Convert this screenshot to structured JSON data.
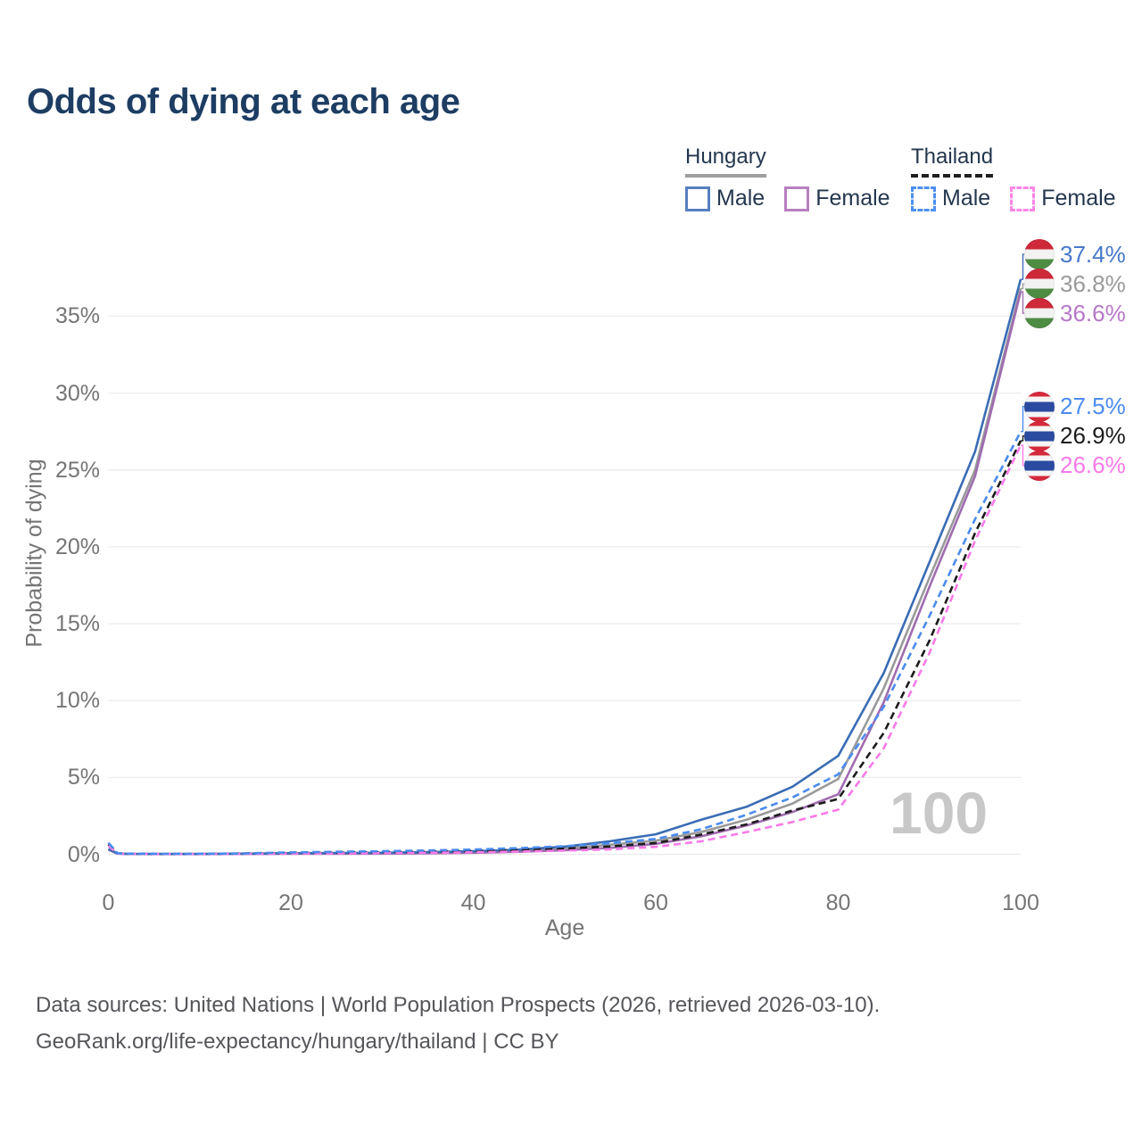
{
  "title": "Odds of dying at each age",
  "legend": {
    "groups": [
      {
        "country": "Hungary",
        "line_style": "solid",
        "underline_color": "#9e9e9e",
        "items": [
          {
            "label": "Male",
            "color": "#577fc0"
          },
          {
            "label": "Female",
            "color": "#b780bf"
          }
        ]
      },
      {
        "country": "Thailand",
        "line_style": "dashed",
        "underline_color": "#1f1f1f",
        "items": [
          {
            "label": "Male",
            "color": "#4d8ff2"
          },
          {
            "label": "Female",
            "color": "#ff85e6"
          }
        ]
      }
    ]
  },
  "y_axis": {
    "title": "Probability of dying",
    "tick_values": [
      0,
      5,
      10,
      15,
      20,
      25,
      30,
      35
    ],
    "tick_suffix": "%"
  },
  "x_axis": {
    "title": "Age",
    "tick_values": [
      0,
      20,
      40,
      60,
      80,
      100
    ]
  },
  "hover_age_watermark": "100",
  "footer": {
    "line1": "Data sources: United Nations | World Population Prospects (2026, retrieved 2026-03-10).",
    "line2": "GeoRank.org/life-expectancy/hungary/thailand | CC BY"
  },
  "chart_data": {
    "type": "line",
    "title": "Odds of dying at each age",
    "xlabel": "Age",
    "ylabel": "Probability of dying",
    "x_range": [
      0,
      100
    ],
    "y_range_pct": [
      0,
      37.5
    ],
    "grid": true,
    "legend_position": "top-right",
    "ages": [
      0,
      1,
      2,
      5,
      10,
      15,
      20,
      25,
      30,
      35,
      40,
      45,
      50,
      55,
      60,
      65,
      70,
      75,
      80,
      85,
      90,
      95,
      100
    ],
    "series": [
      {
        "name": "Hungary Male",
        "country": "Hungary",
        "sex": "Male",
        "color": "#3a6cb4",
        "label_color": "#4677c8",
        "dashed": false,
        "end_label": "37.4%",
        "values": [
          0.35,
          0.05,
          0.03,
          0.02,
          0.02,
          0.04,
          0.07,
          0.08,
          0.1,
          0.14,
          0.2,
          0.3,
          0.5,
          0.85,
          1.3,
          2.25,
          3.1,
          4.4,
          6.4,
          11.8,
          19.0,
          26.2,
          37.4
        ]
      },
      {
        "name": "Hungary Both sexes",
        "country": "Hungary",
        "sex": "Both",
        "color": "#9a9a9a",
        "label_color": "#9a9a9a",
        "dashed": false,
        "end_label": "36.8%",
        "values": [
          0.33,
          0.05,
          0.03,
          0.02,
          0.02,
          0.03,
          0.05,
          0.06,
          0.07,
          0.1,
          0.15,
          0.23,
          0.38,
          0.62,
          0.88,
          1.45,
          2.26,
          3.3,
          4.9,
          10.8,
          18.0,
          25.0,
          36.8
        ]
      },
      {
        "name": "Hungary Female",
        "country": "Hungary",
        "sex": "Female",
        "color": "#a06cb0",
        "label_color": "#b678c8",
        "dashed": false,
        "end_label": "36.6%",
        "values": [
          0.3,
          0.04,
          0.02,
          0.01,
          0.01,
          0.02,
          0.03,
          0.03,
          0.04,
          0.06,
          0.1,
          0.16,
          0.26,
          0.42,
          0.68,
          1.17,
          1.88,
          2.75,
          3.9,
          9.9,
          17.4,
          24.6,
          36.6
        ]
      },
      {
        "name": "Thailand Male",
        "country": "Thailand",
        "sex": "Male",
        "color": "#4b8bee",
        "label_color": "#4b8bee",
        "dashed": true,
        "end_label": "27.5%",
        "values": [
          0.75,
          0.07,
          0.04,
          0.03,
          0.03,
          0.06,
          0.12,
          0.16,
          0.2,
          0.25,
          0.31,
          0.4,
          0.52,
          0.72,
          1.0,
          1.63,
          2.58,
          3.7,
          5.2,
          9.6,
          15.5,
          21.8,
          27.5
        ]
      },
      {
        "name": "Thailand Both sexes",
        "country": "Thailand",
        "sex": "Both",
        "color": "#1c1c1c",
        "label_color": "#1c1c1c",
        "dashed": true,
        "end_label": "26.9%",
        "values": [
          0.65,
          0.06,
          0.04,
          0.02,
          0.02,
          0.05,
          0.08,
          0.11,
          0.14,
          0.17,
          0.22,
          0.28,
          0.37,
          0.51,
          0.73,
          1.28,
          1.95,
          2.85,
          3.6,
          7.9,
          13.9,
          20.9,
          26.9
        ]
      },
      {
        "name": "Thailand Female",
        "country": "Thailand",
        "sex": "Female",
        "color": "#f97ae8",
        "label_color": "#f97ae8",
        "dashed": true,
        "end_label": "26.6%",
        "values": [
          0.55,
          0.05,
          0.03,
          0.02,
          0.02,
          0.03,
          0.05,
          0.06,
          0.08,
          0.1,
          0.13,
          0.18,
          0.24,
          0.32,
          0.48,
          0.85,
          1.45,
          2.1,
          2.9,
          6.9,
          13.1,
          20.4,
          26.6
        ]
      }
    ]
  }
}
